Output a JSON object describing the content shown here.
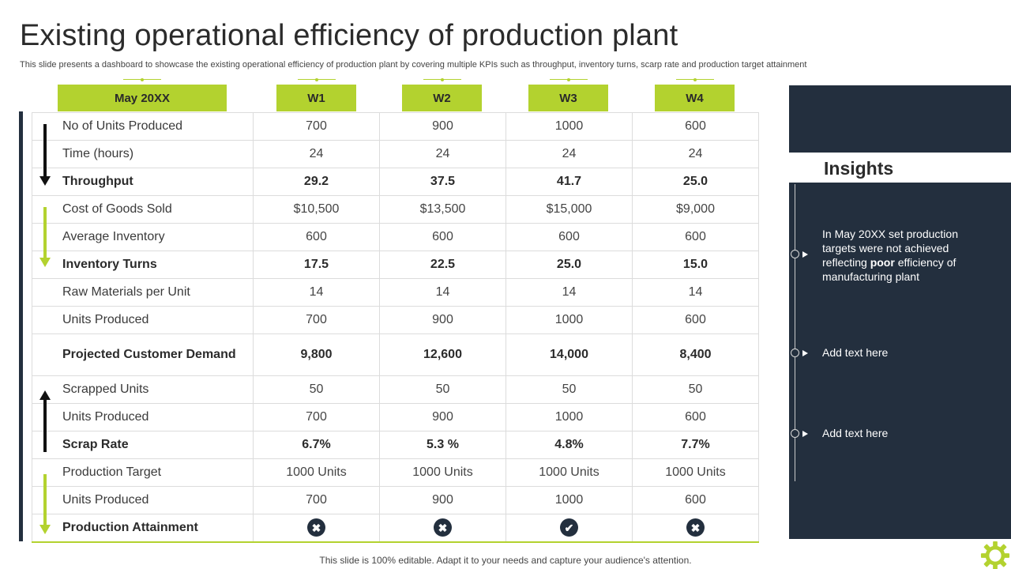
{
  "header": {
    "title": "Existing operational efficiency of production plant",
    "subtitle": "This slide presents a dashboard to showcase the existing operational efficiency of production plant by covering multiple KPIs such as throughput, inventory turns, scarp rate and production target attainment"
  },
  "table": {
    "columns": [
      "May 20XX",
      "W1",
      "W2",
      "W3",
      "W4"
    ],
    "rows": [
      {
        "label": "No of Units Produced",
        "values": [
          "700",
          "900",
          "1000",
          "600"
        ]
      },
      {
        "label": "Time (hours)",
        "values": [
          "24",
          "24",
          "24",
          "24"
        ]
      },
      {
        "label": "Throughput",
        "values": [
          "29.2",
          "37.5",
          "41.7",
          "25.0"
        ]
      },
      {
        "label": "Cost of Goods Sold",
        "values": [
          "$10,500",
          "$13,500",
          "$15,000",
          "$9,000"
        ]
      },
      {
        "label": "Average Inventory",
        "values": [
          "600",
          "600",
          "600",
          "600"
        ]
      },
      {
        "label": "Inventory Turns",
        "values": [
          "17.5",
          "22.5",
          "25.0",
          "15.0"
        ]
      },
      {
        "label": "Raw Materials per Unit",
        "values": [
          "14",
          "14",
          "14",
          "14"
        ]
      },
      {
        "label": "Units Produced",
        "values": [
          "700",
          "900",
          "1000",
          "600"
        ]
      },
      {
        "label": "Projected Customer Demand",
        "values": [
          "9,800",
          "12,600",
          "14,000",
          "8,400"
        ]
      },
      {
        "label": "Scrapped Units",
        "values": [
          "50",
          "50",
          "50",
          "50"
        ]
      },
      {
        "label": "Units Produced",
        "values": [
          "700",
          "900",
          "1000",
          "600"
        ]
      },
      {
        "label": "Scrap Rate",
        "values": [
          "6.7%",
          "5.3 %",
          "4.8%",
          "7.7%"
        ]
      },
      {
        "label": "Production Target",
        "values": [
          "1000 Units",
          "1000 Units",
          "1000 Units",
          "1000 Units"
        ]
      },
      {
        "label": "Units Produced",
        "values": [
          "700",
          "900",
          "1000",
          "600"
        ]
      },
      {
        "label": "Production Attainment",
        "status": [
          "not-achieved",
          "not-achieved",
          "achieved",
          "not-achieved"
        ]
      }
    ]
  },
  "insights": {
    "title": "Insights",
    "item1": {
      "before": "In May 20XX set production targets were not achieved reflecting ",
      "bold": "poor",
      "after": " efficiency of manufacturing plant"
    },
    "item2": "Add text here",
    "item3": "Add text here"
  },
  "footer": "This slide is 100% editable. Adapt it to your needs and capture your audience's attention.",
  "colors": {
    "accent": "#b3d22f",
    "dark": "#232f3e"
  }
}
